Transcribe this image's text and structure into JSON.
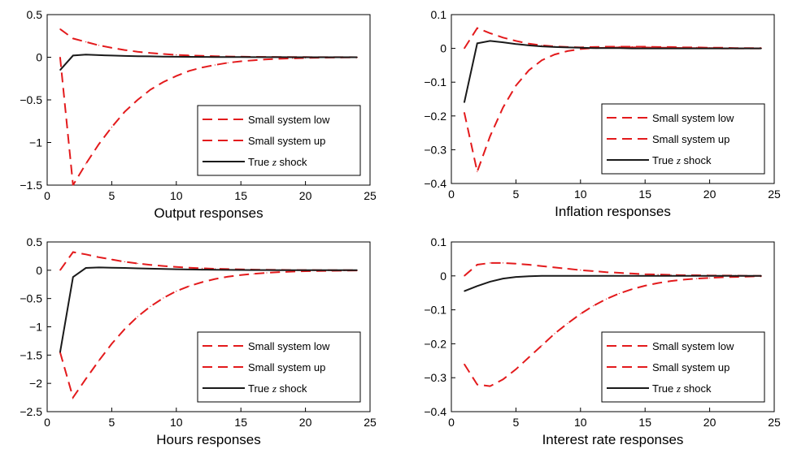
{
  "colors": {
    "red": "#e31a1c",
    "black": "#1a1a1a"
  },
  "chart_data": [
    {
      "type": "line",
      "xlabel": "Output responses",
      "xlim": [
        0,
        25
      ],
      "ylim": [
        -1.5,
        0.5
      ],
      "xticks": [
        0,
        5,
        10,
        15,
        20,
        25
      ],
      "xtick_labels": [
        "0",
        "5",
        "10",
        "15",
        "20",
        "25"
      ],
      "yticks": [
        -1.5,
        -1,
        -0.5,
        0,
        0.5
      ],
      "ytick_labels": [
        "−1.5",
        "−1",
        "−0.5",
        "0",
        "0.5"
      ],
      "legend": {
        "position": "bottom-right"
      },
      "x": [
        1,
        2,
        3,
        4,
        5,
        6,
        7,
        8,
        9,
        10,
        11,
        12,
        13,
        14,
        15,
        16,
        17,
        18,
        19,
        20,
        21,
        22,
        23,
        24
      ],
      "series": [
        {
          "name": "Small system low",
          "style": "dashed",
          "color": "#e31a1c",
          "values": [
            0.0,
            -1.5,
            -1.25,
            -1.02,
            -0.82,
            -0.64,
            -0.5,
            -0.38,
            -0.29,
            -0.22,
            -0.16,
            -0.12,
            -0.09,
            -0.065,
            -0.048,
            -0.035,
            -0.025,
            -0.018,
            -0.013,
            -0.009,
            -0.006,
            -0.004,
            -0.003,
            -0.002
          ]
        },
        {
          "name": "Small system up",
          "style": "dashed",
          "color": "#e31a1c",
          "values": [
            0.33,
            0.22,
            0.18,
            0.14,
            0.11,
            0.085,
            0.065,
            0.05,
            0.038,
            0.028,
            0.021,
            0.016,
            0.012,
            0.009,
            0.007,
            0.005,
            0.004,
            0.003,
            0.002,
            0.002,
            0.001,
            0.001,
            0.001,
            0.0
          ]
        },
        {
          "name": "True z shock",
          "label_prefix": "True ",
          "label_italic": "z",
          "label_suffix": " shock",
          "style": "solid",
          "color": "#1a1a1a",
          "values": [
            -0.15,
            0.02,
            0.03,
            0.025,
            0.02,
            0.015,
            0.012,
            0.01,
            0.008,
            0.006,
            0.005,
            0.004,
            0.003,
            0.002,
            0.002,
            0.001,
            0.001,
            0.001,
            0.0,
            0.0,
            0.0,
            0.0,
            0.0,
            0.0
          ]
        }
      ]
    },
    {
      "type": "line",
      "xlabel": "Inflation responses",
      "xlim": [
        0,
        25
      ],
      "ylim": [
        -0.4,
        0.1
      ],
      "xticks": [
        0,
        5,
        10,
        15,
        20,
        25
      ],
      "xtick_labels": [
        "0",
        "5",
        "10",
        "15",
        "20",
        "25"
      ],
      "yticks": [
        -0.4,
        -0.3,
        -0.2,
        -0.1,
        0,
        0.1
      ],
      "ytick_labels": [
        "−0.4",
        "−0.3",
        "−0.2",
        "−0.1",
        "0",
        "0.1"
      ],
      "legend": {
        "position": "bottom-right"
      },
      "x": [
        1,
        2,
        3,
        4,
        5,
        6,
        7,
        8,
        9,
        10,
        11,
        12,
        13,
        14,
        15,
        16,
        17,
        18,
        19,
        20,
        21,
        22,
        23,
        24
      ],
      "series": [
        {
          "name": "Small system low",
          "style": "dashed",
          "color": "#e31a1c",
          "values": [
            -0.19,
            -0.365,
            -0.26,
            -0.175,
            -0.11,
            -0.065,
            -0.035,
            -0.018,
            -0.008,
            -0.002,
            0.001,
            0.002,
            0.003,
            0.003,
            0.003,
            0.002,
            0.002,
            0.001,
            0.001,
            0.001,
            0.0,
            0.0,
            0.0,
            0.0
          ]
        },
        {
          "name": "Small system up",
          "style": "dashed",
          "color": "#e31a1c",
          "values": [
            0.0,
            0.06,
            0.045,
            0.032,
            0.022,
            0.014,
            0.009,
            0.006,
            0.004,
            0.003,
            0.004,
            0.005,
            0.005,
            0.005,
            0.005,
            0.004,
            0.004,
            0.003,
            0.003,
            0.002,
            0.002,
            0.001,
            0.001,
            0.001
          ]
        },
        {
          "name": "True z shock",
          "label_prefix": "True ",
          "label_italic": "z",
          "label_suffix": " shock",
          "style": "solid",
          "color": "#1a1a1a",
          "values": [
            -0.16,
            0.015,
            0.022,
            0.018,
            0.013,
            0.009,
            0.006,
            0.004,
            0.003,
            0.002,
            0.001,
            0.001,
            0.001,
            0.0,
            0.0,
            0.0,
            0.0,
            0.0,
            0.0,
            0.0,
            0.0,
            0.0,
            0.0,
            0.0
          ]
        }
      ]
    },
    {
      "type": "line",
      "xlabel": "Hours responses",
      "xlim": [
        0,
        25
      ],
      "ylim": [
        -2.5,
        0.5
      ],
      "xticks": [
        0,
        5,
        10,
        15,
        20,
        25
      ],
      "xtick_labels": [
        "0",
        "5",
        "10",
        "15",
        "20",
        "25"
      ],
      "yticks": [
        -2.5,
        -2,
        -1.5,
        -1,
        -0.5,
        0,
        0.5
      ],
      "ytick_labels": [
        "−2.5",
        "−2",
        "−1.5",
        "−1",
        "−0.5",
        "0",
        "0.5"
      ],
      "legend": {
        "position": "bottom-right"
      },
      "x": [
        1,
        2,
        3,
        4,
        5,
        6,
        7,
        8,
        9,
        10,
        11,
        12,
        13,
        14,
        15,
        16,
        17,
        18,
        19,
        20,
        21,
        22,
        23,
        24
      ],
      "series": [
        {
          "name": "Small system low",
          "style": "dashed",
          "color": "#e31a1c",
          "values": [
            -1.45,
            -2.25,
            -1.92,
            -1.6,
            -1.3,
            -1.04,
            -0.82,
            -0.64,
            -0.49,
            -0.37,
            -0.28,
            -0.21,
            -0.155,
            -0.115,
            -0.085,
            -0.062,
            -0.045,
            -0.033,
            -0.024,
            -0.017,
            -0.012,
            -0.009,
            -0.006,
            -0.004
          ]
        },
        {
          "name": "Small system up",
          "style": "dashed",
          "color": "#e31a1c",
          "values": [
            0.0,
            0.32,
            0.28,
            0.23,
            0.19,
            0.15,
            0.12,
            0.095,
            0.075,
            0.058,
            0.045,
            0.035,
            0.027,
            0.02,
            0.015,
            0.011,
            0.008,
            0.006,
            0.004,
            0.003,
            0.002,
            0.002,
            0.001,
            0.001
          ]
        },
        {
          "name": "True z shock",
          "label_prefix": "True ",
          "label_italic": "z",
          "label_suffix": " shock",
          "style": "solid",
          "color": "#1a1a1a",
          "values": [
            -1.45,
            -0.12,
            0.04,
            0.05,
            0.045,
            0.04,
            0.034,
            0.028,
            0.022,
            0.018,
            0.014,
            0.011,
            0.008,
            0.006,
            0.005,
            0.004,
            0.003,
            0.002,
            0.002,
            0.001,
            0.001,
            0.001,
            0.0,
            0.0
          ]
        }
      ]
    },
    {
      "type": "line",
      "xlabel": "Interest rate responses",
      "xlim": [
        0,
        25
      ],
      "ylim": [
        -0.4,
        0.1
      ],
      "xticks": [
        0,
        5,
        10,
        15,
        20,
        25
      ],
      "xtick_labels": [
        "0",
        "5",
        "10",
        "15",
        "20",
        "25"
      ],
      "yticks": [
        -0.4,
        -0.3,
        -0.2,
        -0.1,
        0,
        0.1
      ],
      "ytick_labels": [
        "−0.4",
        "−0.3",
        "−0.2",
        "−0.1",
        "0",
        "0.1"
      ],
      "legend": {
        "position": "bottom-right"
      },
      "x": [
        1,
        2,
        3,
        4,
        5,
        6,
        7,
        8,
        9,
        10,
        11,
        12,
        13,
        14,
        15,
        16,
        17,
        18,
        19,
        20,
        21,
        22,
        23,
        24
      ],
      "series": [
        {
          "name": "Small system low",
          "style": "dashed",
          "color": "#e31a1c",
          "values": [
            -0.26,
            -0.32,
            -0.325,
            -0.305,
            -0.275,
            -0.24,
            -0.205,
            -0.17,
            -0.14,
            -0.112,
            -0.088,
            -0.068,
            -0.052,
            -0.039,
            -0.029,
            -0.021,
            -0.015,
            -0.011,
            -0.008,
            -0.006,
            -0.004,
            -0.003,
            -0.002,
            -0.001
          ]
        },
        {
          "name": "Small system up",
          "style": "dashed",
          "color": "#e31a1c",
          "values": [
            0.0,
            0.033,
            0.038,
            0.038,
            0.036,
            0.033,
            0.029,
            0.025,
            0.021,
            0.017,
            0.014,
            0.011,
            0.009,
            0.007,
            0.005,
            0.004,
            0.003,
            0.002,
            0.002,
            0.001,
            0.001,
            0.001,
            0.0,
            0.0
          ]
        },
        {
          "name": "True z shock",
          "label_prefix": "True ",
          "label_italic": "z",
          "label_suffix": " shock",
          "style": "solid",
          "color": "#1a1a1a",
          "values": [
            -0.045,
            -0.03,
            -0.017,
            -0.008,
            -0.003,
            -0.001,
            0.0,
            0.0,
            0.0,
            0.0,
            0.0,
            0.0,
            0.0,
            0.0,
            0.0,
            0.0,
            0.0,
            0.0,
            0.0,
            0.0,
            0.0,
            0.0,
            0.0,
            0.0
          ]
        }
      ]
    }
  ]
}
